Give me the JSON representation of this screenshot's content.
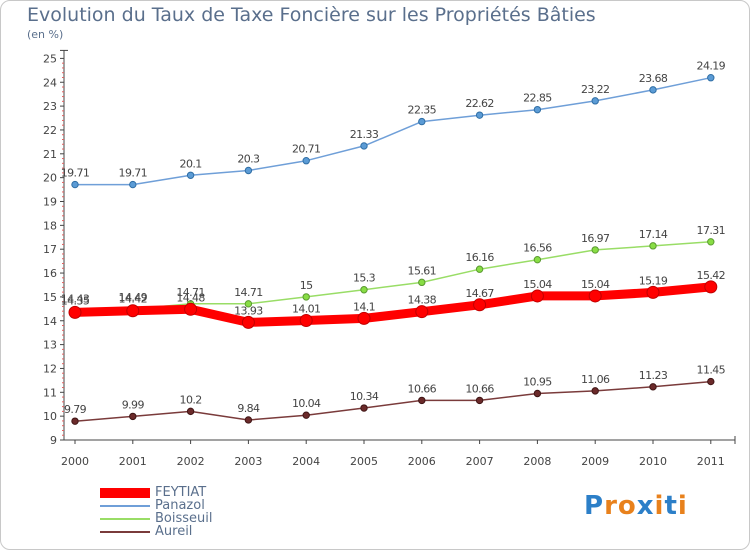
{
  "chart_data": {
    "type": "line",
    "title": "Evolution du Taux de Taxe Foncière sur les Propriétés Bâties",
    "subtitle": "(en %)",
    "categories": [
      "2000",
      "2001",
      "2002",
      "2003",
      "2004",
      "2005",
      "2006",
      "2007",
      "2008",
      "2009",
      "2010",
      "2011"
    ],
    "ylim": [
      9,
      25
    ],
    "y_ticks": [
      "9",
      "10",
      "11",
      "12",
      "13",
      "14",
      "15",
      "16",
      "17",
      "18",
      "19",
      "20",
      "21",
      "22",
      "23",
      "24",
      "25"
    ],
    "grid": false,
    "legend_position": "bottom-left",
    "series": [
      {
        "name": "FEYTIAT",
        "color": "#ff0000",
        "values": [
          14.35,
          14.42,
          14.48,
          13.93,
          14.01,
          14.1,
          14.38,
          14.67,
          15.04,
          15.04,
          15.19,
          15.42
        ],
        "labels": [
          "14.35",
          "14.42",
          "14.48",
          "13.93",
          "14.01",
          "14.1",
          "14.38",
          "14.67",
          "15.04",
          "15.04",
          "15.19",
          "15.42"
        ]
      },
      {
        "name": "Panazol",
        "color": "#6f9fd8",
        "values": [
          19.71,
          19.71,
          20.1,
          20.3,
          20.71,
          21.33,
          22.35,
          22.62,
          22.85,
          23.22,
          23.68,
          24.19
        ],
        "labels": [
          "19.71",
          "19.71",
          "20.1",
          "20.3",
          "20.71",
          "21.33",
          "22.35",
          "22.62",
          "22.85",
          "23.22",
          "23.68",
          "24.19"
        ]
      },
      {
        "name": "Boisseuil",
        "color": "#99dd66",
        "values": [
          14.43,
          14.49,
          14.71,
          14.71,
          15.0,
          15.3,
          15.61,
          16.16,
          16.56,
          16.97,
          17.14,
          17.31
        ],
        "labels": [
          "14.43",
          "14.49",
          "14.71",
          "14.71",
          "15",
          "15.3",
          "15.61",
          "16.16",
          "16.56",
          "16.97",
          "17.14",
          "17.31"
        ]
      },
      {
        "name": "Aureil",
        "color": "#7a3b3b",
        "values": [
          9.79,
          9.99,
          10.2,
          9.84,
          10.04,
          10.34,
          10.66,
          10.66,
          10.95,
          11.06,
          11.23,
          11.45
        ],
        "labels": [
          "9.79",
          "9.99",
          "10.2",
          "9.84",
          "10.04",
          "10.34",
          "10.66",
          "10.66",
          "10.95",
          "11.06",
          "11.23",
          "11.45"
        ]
      }
    ]
  },
  "logo": {
    "text": "Proxiti",
    "letters": [
      "P",
      "r",
      "o",
      "x",
      "i",
      "t",
      "i"
    ],
    "colors": [
      "#2c7fc8",
      "#e8811c",
      "#e8811c",
      "#2c7fc8",
      "#e8811c",
      "#2c7fc8",
      "#e8811c"
    ]
  }
}
